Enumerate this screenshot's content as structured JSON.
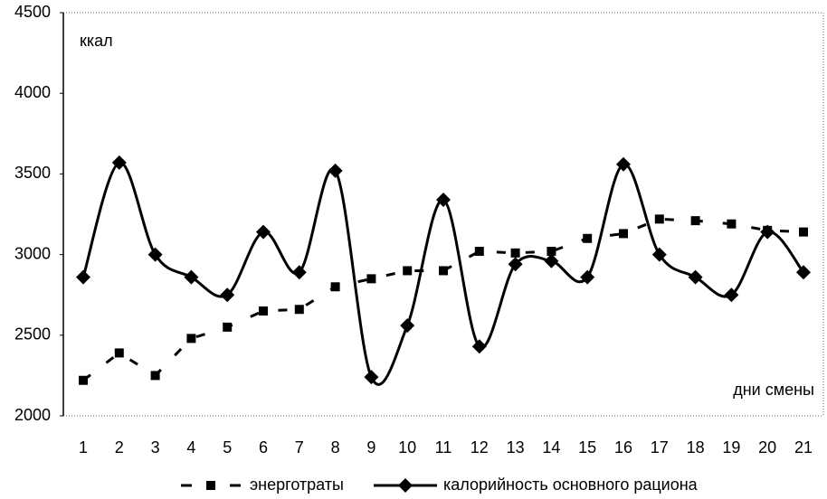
{
  "chart_data": {
    "type": "line",
    "categories": [
      "1",
      "2",
      "3",
      "4",
      "5",
      "6",
      "7",
      "8",
      "9",
      "10",
      "11",
      "12",
      "13",
      "14",
      "15",
      "16",
      "17",
      "18",
      "19",
      "20",
      "21"
    ],
    "series": [
      {
        "name": "энерготраты",
        "color": "#000000",
        "dashed": true,
        "marker": "square",
        "smooth": false,
        "values": [
          2220,
          2390,
          2250,
          2480,
          2550,
          2650,
          2660,
          2800,
          2850,
          2900,
          2900,
          3020,
          3010,
          3020,
          3100,
          3130,
          3220,
          3210,
          3190,
          3150,
          3140
        ]
      },
      {
        "name": "калорийность основного рациона",
        "color": "#000000",
        "dashed": false,
        "marker": "diamond",
        "smooth": true,
        "values": [
          2860,
          3570,
          3000,
          2860,
          2750,
          3140,
          2890,
          3520,
          2240,
          2560,
          3340,
          2430,
          2940,
          2960,
          2860,
          3560,
          3000,
          2860,
          2750,
          3140,
          2890
        ]
      }
    ],
    "ylim": [
      2000,
      4500
    ],
    "yticks": [
      2000,
      2500,
      3000,
      3500,
      4000,
      4500
    ],
    "y_label": "ккал",
    "x_label": "дни смены",
    "grid": false
  }
}
